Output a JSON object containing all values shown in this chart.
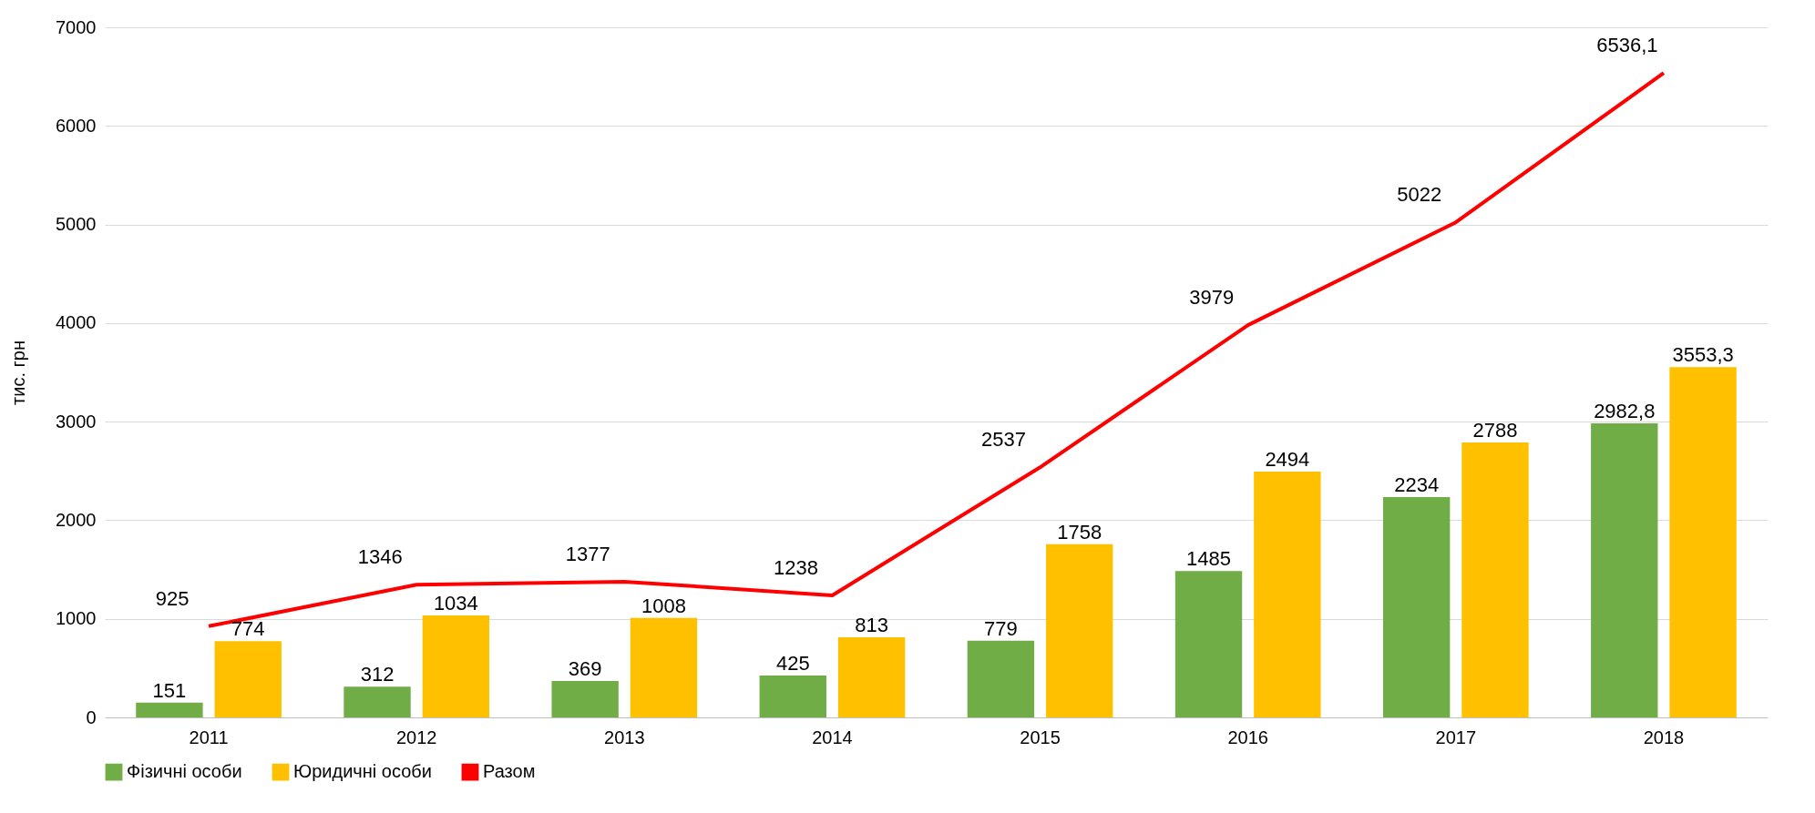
{
  "chart_data": {
    "type": "bar",
    "ylabel": "тис. грн",
    "categories": [
      "2011",
      "2012",
      "2013",
      "2014",
      "2015",
      "2016",
      "2017",
      "2018"
    ],
    "series": [
      {
        "name": "Фізичні особи",
        "color": "#70ad47",
        "values": [
          151,
          312,
          369,
          425,
          779,
          1485,
          2234,
          2982.8
        ],
        "value_labels": [
          "151",
          "312",
          "369",
          "425",
          "779",
          "1485",
          "2234",
          "2982,8"
        ]
      },
      {
        "name": "Юридичні особи",
        "color": "#ffc000",
        "values": [
          774,
          1034,
          1008,
          813,
          1758,
          2494,
          2788,
          3553.3
        ],
        "value_labels": [
          "774",
          "1034",
          "1008",
          "813",
          "1758",
          "2494",
          "2788",
          "3553,3"
        ]
      },
      {
        "name": "Разом",
        "type": "line",
        "color": "#ff0000",
        "values": [
          925,
          1346,
          1377,
          1238,
          2537,
          3979,
          5022,
          6536.1
        ],
        "value_labels": [
          "925",
          "1346",
          "1377",
          "1238",
          "2537",
          "3979",
          "5022",
          "6536,1"
        ]
      }
    ],
    "ylim": [
      0,
      7000
    ],
    "yticks": [
      0,
      1000,
      2000,
      3000,
      4000,
      5000,
      6000,
      7000
    ],
    "grid": "y",
    "legend": "bottom"
  }
}
